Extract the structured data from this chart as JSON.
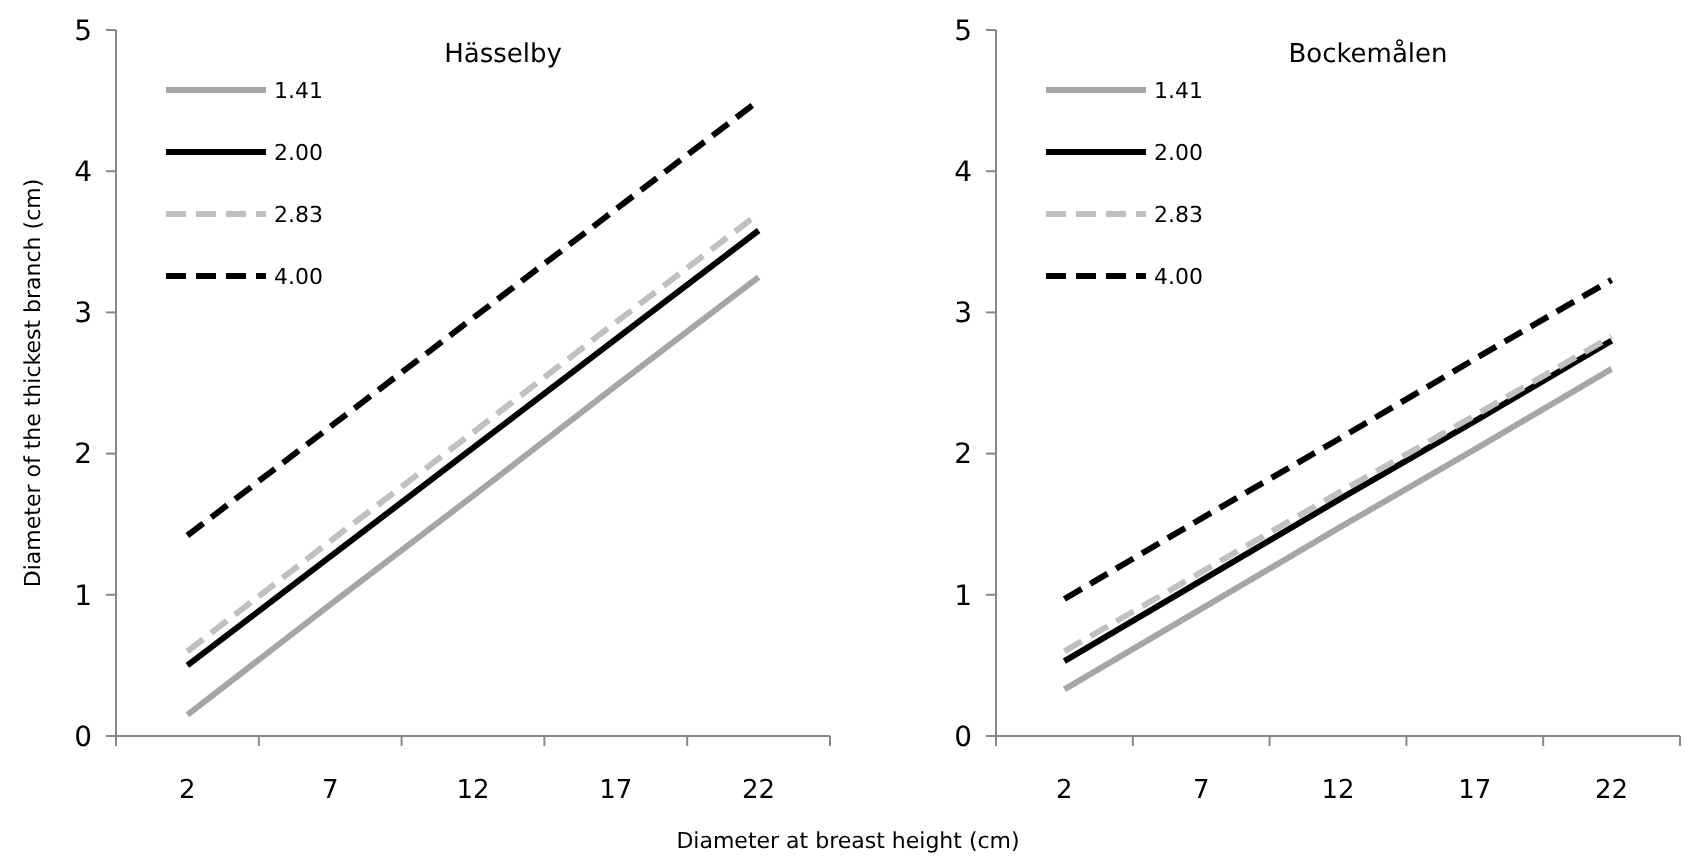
{
  "chart_data": [
    {
      "type": "line",
      "title": "Hässelby",
      "xlabel": "Diameter at breast height (cm)",
      "ylabel": "Diameter of the thickest branch (cm)",
      "categories": [
        "2",
        "7",
        "12",
        "17",
        "22"
      ],
      "ylim": [
        0,
        5
      ],
      "yticks": [
        0,
        1,
        2,
        3,
        4,
        5
      ],
      "grid": false,
      "legend": "top left",
      "marker": "none",
      "series": [
        {
          "name": "1.41",
          "color": "#a6a6a6",
          "line_style": "solid",
          "values": [
            0.15,
            0.93,
            1.7,
            2.48,
            3.25
          ]
        },
        {
          "name": "2.00",
          "color": "#000000",
          "line_style": "solid",
          "values": [
            0.5,
            1.27,
            2.04,
            2.81,
            3.58
          ]
        },
        {
          "name": "2.83",
          "color": "#c0c0c0",
          "line_style": "dashed",
          "values": [
            0.6,
            1.38,
            2.15,
            2.93,
            3.7
          ]
        },
        {
          "name": "4.00",
          "color": "#000000",
          "line_style": "dashed",
          "values": [
            1.42,
            2.19,
            2.96,
            3.73,
            4.5
          ]
        }
      ]
    },
    {
      "type": "line",
      "title": "Bockemålen",
      "categories": [
        "2",
        "7",
        "12",
        "17",
        "22"
      ],
      "ylim": [
        0,
        5
      ],
      "yticks": [
        0,
        1,
        2,
        3,
        4,
        5
      ],
      "grid": false,
      "legend": "top left",
      "marker": "none",
      "series": [
        {
          "name": "1.41",
          "color": "#a6a6a6",
          "line_style": "solid",
          "values": [
            0.33,
            0.9,
            1.47,
            2.03,
            2.6
          ]
        },
        {
          "name": "2.00",
          "color": "#000000",
          "line_style": "solid",
          "values": [
            0.53,
            1.1,
            1.67,
            2.23,
            2.8
          ]
        },
        {
          "name": "2.83",
          "color": "#c0c0c0",
          "line_style": "dashed",
          "values": [
            0.6,
            1.16,
            1.72,
            2.27,
            2.83
          ]
        },
        {
          "name": "4.00",
          "color": "#000000",
          "line_style": "dashed",
          "values": [
            0.97,
            1.54,
            2.1,
            2.67,
            3.23
          ]
        }
      ]
    }
  ]
}
